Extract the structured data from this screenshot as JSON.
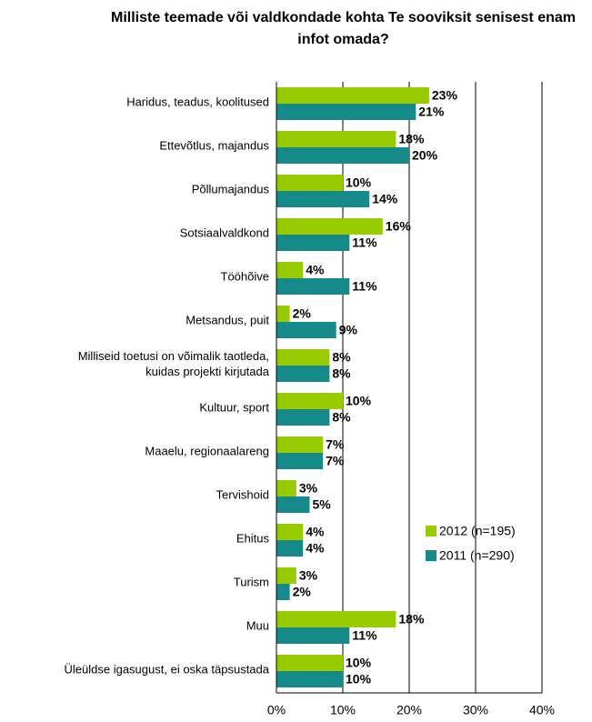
{
  "chart_data": {
    "type": "bar",
    "orientation": "horizontal",
    "title": "Milliste teemade või valdkondade kohta Te sooviksit senisest enam infot omada?",
    "categories": [
      "Haridus, teadus, koolitused",
      "Ettevõtlus, majandus",
      "Põllumajandus",
      "Sotsiaalvaldkond",
      "Tööhõive",
      "Metsandus, puit",
      "Milliseid toetusi on võimalik taotleda, kuidas projekti kirjutada",
      "Kultuur, sport",
      "Maaelu, regionaalareng",
      "Tervishoid",
      "Ehitus",
      "Turism",
      "Muu",
      "Üleüldse igasugust, ei oska täpsustada"
    ],
    "series": [
      {
        "name": "2012 (n=195)",
        "color": "#99cc00",
        "values": [
          23,
          18,
          10,
          16,
          4,
          2,
          8,
          10,
          7,
          3,
          4,
          3,
          18,
          10
        ],
        "value_labels": [
          "23%",
          "18%",
          "10%",
          "16%",
          "4%",
          "2%",
          "8%",
          "10%",
          "7%",
          "3%",
          "4%",
          "3%",
          "18%",
          "10%"
        ]
      },
      {
        "name": "2011 (n=290)",
        "color": "#168a8a",
        "values": [
          21,
          20,
          14,
          11,
          11,
          9,
          8,
          8,
          7,
          5,
          4,
          2,
          11,
          10
        ],
        "value_labels": [
          "21%",
          "20%",
          "14%",
          "11%",
          "11%",
          "9%",
          "8%",
          "8%",
          "7%",
          "5%",
          "4%",
          "2%",
          "11%",
          "10%"
        ]
      }
    ],
    "xlim": [
      0,
      40
    ],
    "xticks": [
      {
        "value": 0,
        "label": "0%"
      },
      {
        "value": 10,
        "label": "10%"
      },
      {
        "value": 20,
        "label": "20%"
      },
      {
        "value": 30,
        "label": "30%"
      },
      {
        "value": 40,
        "label": "40%"
      }
    ],
    "grid": true,
    "legend": "right"
  }
}
